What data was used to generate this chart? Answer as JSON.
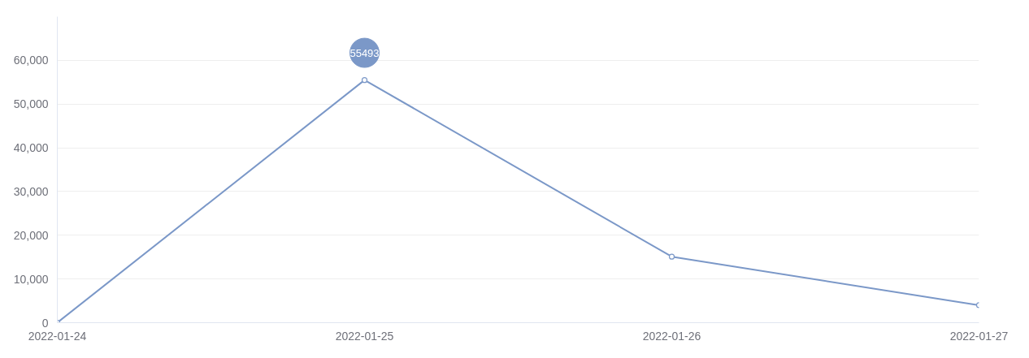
{
  "chart_data": {
    "type": "line",
    "categories": [
      "2022-01-24",
      "2022-01-25",
      "2022-01-26",
      "2022-01-27"
    ],
    "series": [
      {
        "color": "#7b98c8",
        "values": [
          0,
          55493,
          15100,
          4000
        ]
      }
    ],
    "ylim": [
      0,
      70000
    ],
    "yticks": [
      {
        "value": 0,
        "label": "0"
      },
      {
        "value": 10000,
        "label": "10,000"
      },
      {
        "value": 20000,
        "label": "20,000"
      },
      {
        "value": 30000,
        "label": "30,000"
      },
      {
        "value": 40000,
        "label": "40,000"
      },
      {
        "value": 50000,
        "label": "50,000"
      },
      {
        "value": 60000,
        "label": "60,000"
      }
    ],
    "grid": "y",
    "marker": "circle",
    "line_style": "solid",
    "annotations": [
      {
        "text": "55493",
        "x": "2022-01-25",
        "y": 55493
      }
    ]
  }
}
